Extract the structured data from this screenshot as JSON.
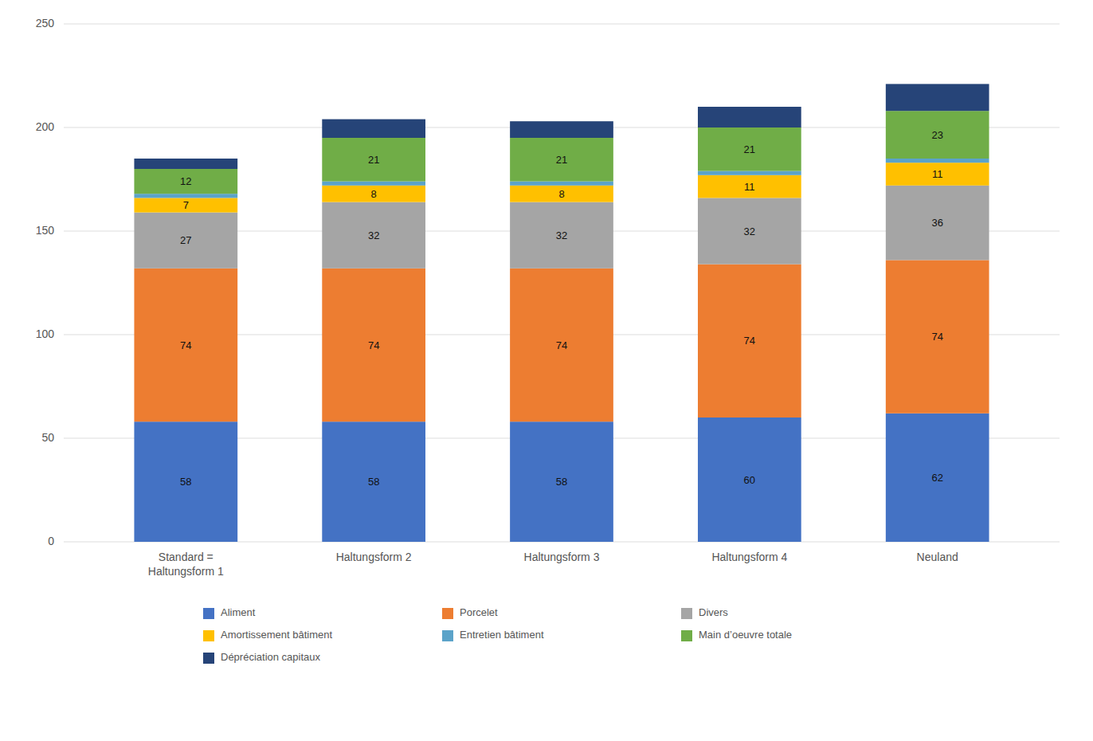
{
  "chart_data": {
    "type": "bar",
    "stacked": true,
    "grid": true,
    "legend": "bottom",
    "categories": [
      "Standard =\nHaltungsform 1",
      "Haltungsform 2",
      "Haltungsform 3",
      "Haltungsform 4",
      "Neuland"
    ],
    "series": [
      {
        "name": "Aliment",
        "color": "#4472C4",
        "values": [
          58,
          58,
          58,
          60,
          62
        ],
        "data_labels": true
      },
      {
        "name": "Porcelet",
        "color": "#ED7D31",
        "values": [
          74,
          74,
          74,
          74,
          74
        ],
        "data_labels": true
      },
      {
        "name": "Divers",
        "color": "#A5A5A5",
        "values": [
          27,
          32,
          32,
          32,
          36
        ],
        "data_labels": true
      },
      {
        "name": "Amortissement bâtiment",
        "color": "#FFC000",
        "values": [
          7,
          8,
          8,
          11,
          11
        ],
        "data_labels": true
      },
      {
        "name": "Entretien bâtiment",
        "color": "#5BA3C9",
        "values": [
          2,
          2,
          2,
          2,
          2
        ],
        "data_labels": false
      },
      {
        "name": "Main d’oeuvre totale",
        "color": "#70AD47",
        "values": [
          12,
          21,
          21,
          21,
          23
        ],
        "data_labels": true
      },
      {
        "name": "Dépréciation capitaux",
        "color": "#264478",
        "values": [
          5,
          9,
          8,
          10,
          13
        ],
        "data_labels": false
      }
    ],
    "ylim": [
      0,
      250
    ],
    "yticks": [
      0,
      50,
      100,
      150,
      200,
      250
    ]
  }
}
